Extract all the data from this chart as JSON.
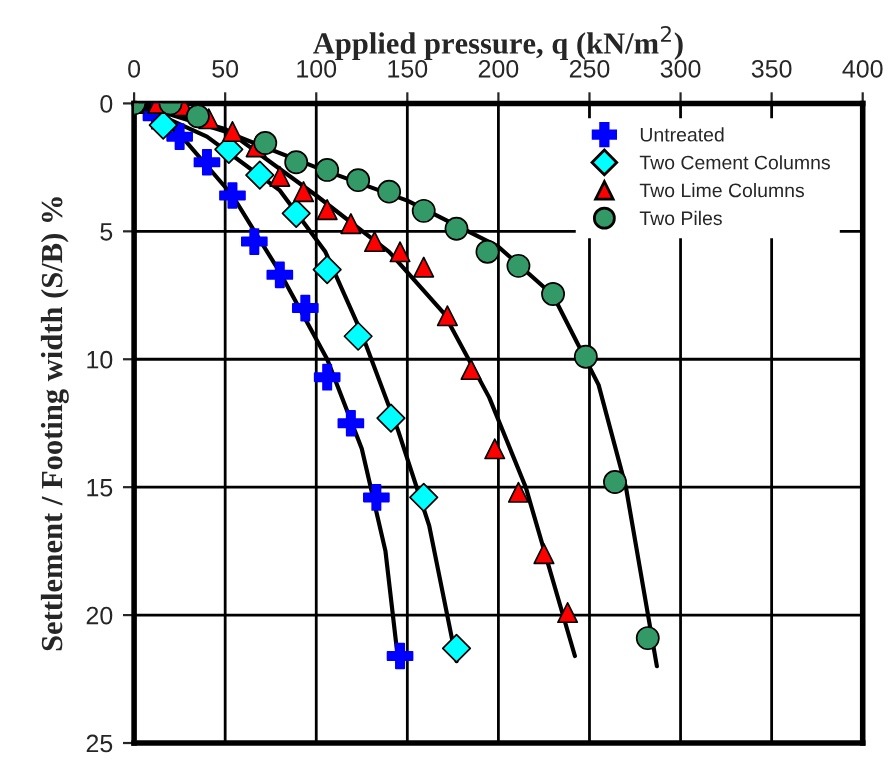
{
  "chart_data": {
    "type": "scatter",
    "xlabel": "Applied pressure, q (kN/m$^{2}$)",
    "ylabel": "Settlement / Footing width (S/B) %",
    "xlim": [
      0,
      400
    ],
    "xticks": [
      0,
      50,
      100,
      150,
      200,
      250,
      300,
      350,
      400
    ],
    "ylim": [
      25,
      0
    ],
    "yticks": [
      0,
      5,
      10,
      15,
      20,
      25
    ],
    "grid": true,
    "legend": "top right",
    "series": [
      {
        "name": "Untreated",
        "color": "#0000ff",
        "marker": "cross",
        "x": [
          12,
          25,
          40,
          54,
          66,
          80,
          94,
          106,
          119,
          133,
          146
        ],
        "values": [
          0.5,
          1.3,
          2.3,
          3.6,
          5.4,
          6.7,
          8.0,
          10.7,
          12.5,
          15.4,
          21.6
        ]
      },
      {
        "name": "Two Cement Columns",
        "color": "#00ffff",
        "marker": "diamond",
        "x": [
          16,
          52,
          69,
          89,
          106,
          123,
          141,
          159,
          177
        ],
        "values": [
          0.85,
          1.8,
          2.8,
          4.3,
          6.5,
          9.1,
          12.3,
          15.4,
          21.3
        ]
      },
      {
        "name": "Two Lime Columns",
        "color": "#ff0000",
        "marker": "triangle",
        "x": [
          0,
          13,
          27,
          41,
          54,
          67,
          80,
          93,
          106,
          119,
          132,
          146,
          159,
          172,
          185,
          198,
          211,
          225,
          238
        ],
        "values": [
          0,
          0,
          0.1,
          0.6,
          1.1,
          1.7,
          2.85,
          3.45,
          4.15,
          4.7,
          5.4,
          5.8,
          6.4,
          8.3,
          10.4,
          13.5,
          15.2,
          17.6,
          19.9
        ]
      },
      {
        "name": "Two Piles",
        "color": "#339966",
        "marker": "circle",
        "x": [
          0,
          20,
          35,
          72,
          89,
          106,
          123,
          140,
          159,
          177,
          194,
          211,
          230,
          248,
          264,
          282
        ],
        "values": [
          0,
          0,
          0.5,
          1.55,
          2.3,
          2.6,
          3.0,
          3.45,
          4.2,
          4.9,
          5.8,
          6.35,
          7.45,
          9.9,
          14.8,
          20.9
        ]
      },
      {
        "type": "line",
        "color": "#000000",
        "marker": "none",
        "x": [
          0,
          25,
          54,
          80,
          106,
          125,
          138,
          145
        ],
        "values": [
          0,
          1.2,
          3.6,
          6.6,
          10.0,
          13.5,
          17.5,
          21.8
        ]
      },
      {
        "type": "line",
        "color": "#000000",
        "marker": "none",
        "x": [
          0,
          40,
          80,
          105,
          125,
          145,
          162,
          177
        ],
        "values": [
          0,
          1.3,
          3.4,
          5.8,
          9.0,
          12.8,
          16.5,
          21.8
        ]
      },
      {
        "type": "line",
        "color": "#000000",
        "marker": "none",
        "x": [
          0,
          50,
          100,
          140,
          170,
          195,
          215,
          242
        ],
        "values": [
          0,
          1.0,
          3.6,
          5.8,
          8.2,
          11.5,
          15.0,
          21.6
        ]
      },
      {
        "type": "line",
        "color": "#000000",
        "marker": "none",
        "x": [
          0,
          50,
          100,
          150,
          200,
          230,
          255,
          270,
          287
        ],
        "values": [
          0,
          1.1,
          2.5,
          3.8,
          5.6,
          7.5,
          11.0,
          15.0,
          22.0
        ]
      }
    ]
  }
}
